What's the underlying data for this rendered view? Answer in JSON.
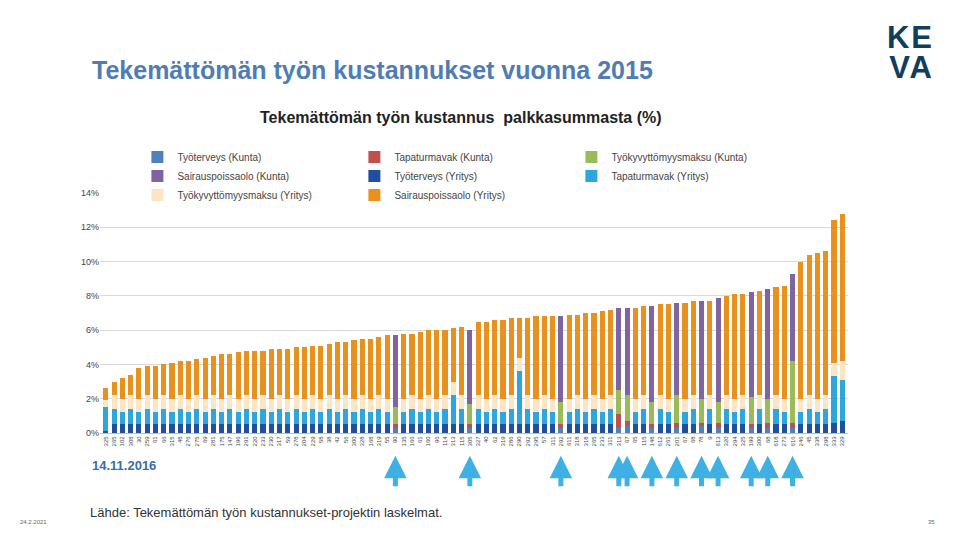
{
  "chart_data": {
    "type": "bar",
    "title": "Tekemättömän työn kustannus  palkkasummasta (%)",
    "stacked": true,
    "grid": true,
    "legend": "top",
    "categories": [
      "325",
      "265",
      "102",
      "308",
      "30",
      "259",
      "61",
      "66",
      "315",
      "48",
      "276",
      "275",
      "69",
      "281",
      "175",
      "147",
      "196",
      "291",
      "220",
      "233",
      "230",
      "317",
      "59",
      "278",
      "204",
      "229",
      "58",
      "38",
      "42",
      "56",
      "300",
      "328",
      "168",
      "319",
      "55",
      "90",
      "135",
      "166",
      "61",
      "160",
      "96",
      "114",
      "313",
      "115",
      "305",
      "327",
      "40",
      "62",
      "319",
      "286",
      "290",
      "292",
      "295",
      "57",
      "311",
      "292",
      "611",
      "318",
      "318",
      "265",
      "233",
      "311",
      "313",
      "67",
      "65",
      "115",
      "148",
      "612",
      "261",
      "201",
      "67",
      "68",
      "78",
      "9",
      "613",
      "320",
      "294",
      "325",
      "199",
      "300",
      "68",
      "618",
      "273",
      "616",
      "246",
      "45",
      "338",
      "298",
      "333",
      "329"
    ],
    "ylim": [
      0,
      14
    ],
    "yticks": [
      {
        "value": 0,
        "label": "0%"
      },
      {
        "value": 2,
        "label": "2%"
      },
      {
        "value": 4,
        "label": "4%"
      },
      {
        "value": 6,
        "label": "6%"
      },
      {
        "value": 8,
        "label": "8%"
      },
      {
        "value": 10,
        "label": "10%"
      },
      {
        "value": 12,
        "label": "12%"
      },
      {
        "value": 14,
        "label": "14%"
      }
    ],
    "series": [
      {
        "name": "Työterveys (Kunta)",
        "color": "#4f81bd",
        "values": [
          null,
          null,
          null,
          null,
          null,
          null,
          null,
          null,
          null,
          null,
          null,
          null,
          null,
          null,
          null,
          null,
          null,
          null,
          null,
          null,
          null,
          null,
          null,
          null,
          null,
          null,
          null,
          null,
          null,
          null,
          null,
          null,
          null,
          null,
          null,
          0.3,
          null,
          null,
          null,
          null,
          null,
          null,
          null,
          null,
          0.3,
          null,
          null,
          null,
          null,
          null,
          null,
          null,
          null,
          null,
          null,
          0.3,
          null,
          null,
          null,
          null,
          null,
          null,
          0.3,
          0.4,
          null,
          null,
          0.3,
          null,
          null,
          0.3,
          null,
          null,
          0.4,
          null,
          0.3,
          null,
          null,
          null,
          0.3,
          null,
          0.3,
          null,
          null,
          0.3,
          null,
          null,
          null,
          null,
          null,
          null
        ]
      },
      {
        "name": "Tapaturmavak (Kunta)",
        "color": "#c0504d",
        "values": [
          null,
          null,
          null,
          null,
          null,
          null,
          null,
          null,
          null,
          null,
          null,
          null,
          null,
          null,
          null,
          null,
          null,
          null,
          null,
          null,
          null,
          null,
          null,
          null,
          null,
          null,
          null,
          null,
          null,
          null,
          null,
          null,
          null,
          null,
          null,
          0.2,
          null,
          null,
          null,
          null,
          null,
          null,
          null,
          null,
          0.2,
          null,
          null,
          null,
          null,
          null,
          null,
          null,
          null,
          null,
          null,
          0.2,
          null,
          null,
          null,
          null,
          null,
          null,
          0.8,
          0.3,
          null,
          null,
          0.2,
          null,
          null,
          0.3,
          null,
          null,
          0.2,
          null,
          0.3,
          null,
          null,
          null,
          0.2,
          null,
          0.3,
          null,
          null,
          0.3,
          null,
          null,
          null,
          null,
          null,
          null
        ]
      },
      {
        "name": "Työkyvyttömyysmaksu (Kunta)",
        "color": "#9bbb59",
        "values": [
          null,
          null,
          null,
          null,
          null,
          null,
          null,
          null,
          null,
          null,
          null,
          null,
          null,
          null,
          null,
          null,
          null,
          null,
          null,
          null,
          null,
          null,
          null,
          null,
          null,
          null,
          null,
          null,
          null,
          null,
          null,
          null,
          null,
          null,
          null,
          1.0,
          null,
          null,
          null,
          null,
          null,
          null,
          null,
          null,
          1.2,
          null,
          null,
          null,
          null,
          null,
          null,
          null,
          null,
          null,
          null,
          1.3,
          null,
          null,
          null,
          null,
          null,
          null,
          1.4,
          1.5,
          null,
          null,
          1.3,
          null,
          null,
          1.6,
          null,
          null,
          1.4,
          null,
          1.2,
          null,
          null,
          null,
          1.6,
          null,
          1.4,
          null,
          null,
          3.6,
          null,
          null,
          null,
          null,
          null,
          null
        ]
      },
      {
        "name": "Sairauspoissaolo (Kunta)",
        "color": "#8064a2",
        "values": [
          null,
          null,
          null,
          null,
          null,
          null,
          null,
          null,
          null,
          null,
          null,
          null,
          null,
          null,
          null,
          null,
          null,
          null,
          null,
          null,
          null,
          null,
          null,
          null,
          null,
          null,
          null,
          null,
          null,
          null,
          null,
          null,
          null,
          null,
          null,
          4.2,
          null,
          null,
          null,
          null,
          null,
          null,
          null,
          null,
          4.3,
          null,
          null,
          null,
          null,
          null,
          null,
          null,
          null,
          null,
          null,
          5.0,
          null,
          null,
          null,
          null,
          null,
          null,
          4.8,
          5.1,
          null,
          null,
          5.6,
          null,
          null,
          5.4,
          null,
          null,
          5.7,
          null,
          6.1,
          null,
          null,
          null,
          6.1,
          null,
          6.4,
          null,
          null,
          5.1,
          null,
          null,
          null,
          null,
          null,
          null
        ]
      },
      {
        "name": "Työterveys (Yritys)",
        "color": "#1f4f9e",
        "values": [
          0.1,
          0.5,
          0.5,
          0.5,
          0.5,
          0.5,
          0.5,
          0.5,
          0.5,
          0.5,
          0.5,
          0.5,
          0.5,
          0.5,
          0.5,
          0.5,
          0.5,
          0.5,
          0.5,
          0.5,
          0.5,
          0.5,
          0.5,
          0.5,
          0.5,
          0.5,
          0.5,
          0.5,
          0.5,
          0.5,
          0.5,
          0.5,
          0.5,
          0.5,
          0.5,
          null,
          0.5,
          0.5,
          0.5,
          0.5,
          0.5,
          0.5,
          0.5,
          0.5,
          null,
          0.5,
          0.5,
          0.5,
          0.5,
          0.5,
          0.5,
          0.5,
          0.5,
          0.5,
          0.5,
          null,
          0.5,
          0.5,
          0.5,
          0.5,
          0.5,
          0.5,
          null,
          null,
          0.5,
          0.5,
          null,
          0.5,
          0.5,
          null,
          0.5,
          0.5,
          null,
          0.5,
          null,
          0.5,
          0.5,
          0.5,
          null,
          0.5,
          null,
          0.5,
          0.5,
          null,
          0.5,
          0.5,
          0.5,
          0.5,
          0.6,
          0.7
        ]
      },
      {
        "name": "Tapaturmavak (Yritys)",
        "color": "#2ea5dc",
        "values": [
          1.4,
          0.9,
          0.7,
          0.9,
          0.7,
          0.9,
          0.7,
          0.9,
          0.7,
          0.9,
          0.7,
          0.9,
          0.7,
          0.9,
          0.7,
          0.9,
          0.7,
          0.9,
          0.7,
          0.9,
          0.7,
          0.9,
          0.7,
          0.9,
          0.7,
          0.9,
          0.7,
          0.9,
          0.7,
          0.9,
          0.7,
          0.9,
          0.7,
          0.9,
          0.7,
          null,
          0.7,
          0.9,
          0.7,
          0.9,
          0.7,
          0.9,
          1.7,
          0.9,
          null,
          0.9,
          0.7,
          0.9,
          0.7,
          0.9,
          3.1,
          0.9,
          0.7,
          0.9,
          0.7,
          null,
          0.7,
          0.9,
          0.7,
          0.9,
          0.7,
          0.9,
          null,
          null,
          0.7,
          0.9,
          null,
          0.9,
          0.7,
          null,
          0.7,
          0.9,
          null,
          0.9,
          null,
          0.9,
          0.7,
          0.9,
          null,
          0.9,
          null,
          0.9,
          0.7,
          null,
          0.7,
          0.9,
          0.7,
          0.9,
          2.7,
          2.4
        ]
      },
      {
        "name": "Työkyvyttömyysmaksu (Yritys)",
        "color": "#fbe5c4",
        "values": [
          0.4,
          0.8,
          0.8,
          0.8,
          0.8,
          0.8,
          0.8,
          0.8,
          0.8,
          0.8,
          0.8,
          0.8,
          0.8,
          0.8,
          0.8,
          0.8,
          0.8,
          0.8,
          0.8,
          0.8,
          0.8,
          0.8,
          0.8,
          0.8,
          0.8,
          0.8,
          0.8,
          0.8,
          0.8,
          0.8,
          0.8,
          0.8,
          0.8,
          0.8,
          0.8,
          null,
          0.8,
          0.8,
          0.8,
          0.8,
          0.8,
          0.8,
          0.8,
          0.8,
          null,
          0.8,
          0.8,
          0.8,
          0.8,
          0.8,
          0.8,
          0.8,
          0.8,
          0.8,
          0.8,
          null,
          0.8,
          0.8,
          0.8,
          0.8,
          0.8,
          0.8,
          null,
          null,
          0.8,
          0.8,
          null,
          0.8,
          0.8,
          null,
          0.8,
          0.8,
          null,
          0.8,
          null,
          0.8,
          0.8,
          0.8,
          null,
          0.8,
          null,
          0.8,
          0.8,
          null,
          0.8,
          0.8,
          0.8,
          0.8,
          0.8,
          1.1
        ]
      },
      {
        "name": "Sairauspoissaolo (Yritys)",
        "color": "#e8911f",
        "values": [
          0.7,
          0.8,
          1.2,
          1.2,
          1.8,
          1.7,
          1.9,
          1.8,
          2.1,
          2.0,
          2.2,
          2.1,
          2.4,
          2.3,
          2.6,
          2.4,
          2.7,
          2.6,
          2.8,
          2.6,
          2.9,
          2.7,
          2.9,
          2.8,
          3.0,
          2.9,
          3.1,
          3.0,
          3.3,
          3.1,
          3.4,
          3.3,
          3.5,
          3.4,
          3.7,
          null,
          3.8,
          3.6,
          3.9,
          3.8,
          4.0,
          3.8,
          3.1,
          4.0,
          null,
          4.3,
          4.5,
          4.4,
          4.6,
          4.5,
          2.3,
          4.5,
          4.8,
          4.6,
          4.8,
          null,
          4.9,
          4.7,
          5.0,
          4.8,
          5.1,
          5.0,
          null,
          null,
          5.3,
          5.2,
          null,
          5.3,
          5.5,
          null,
          5.6,
          5.5,
          null,
          5.5,
          null,
          5.8,
          6.1,
          5.9,
          null,
          6.1,
          null,
          6.3,
          6.6,
          null,
          8.0,
          8.2,
          8.5,
          8.4,
          8.3,
          8.6
        ]
      }
    ]
  },
  "slide": {
    "heading": "Tekemättömän työn kustannukset vuonna 2015",
    "logo": [
      "KE",
      "VA"
    ],
    "date_note": "14.11.2016",
    "source": "Lähde: Tekemättömän työn kustannukset-projektin laskelmat.",
    "footer_date": "24.2.2021",
    "page_number": "35"
  }
}
